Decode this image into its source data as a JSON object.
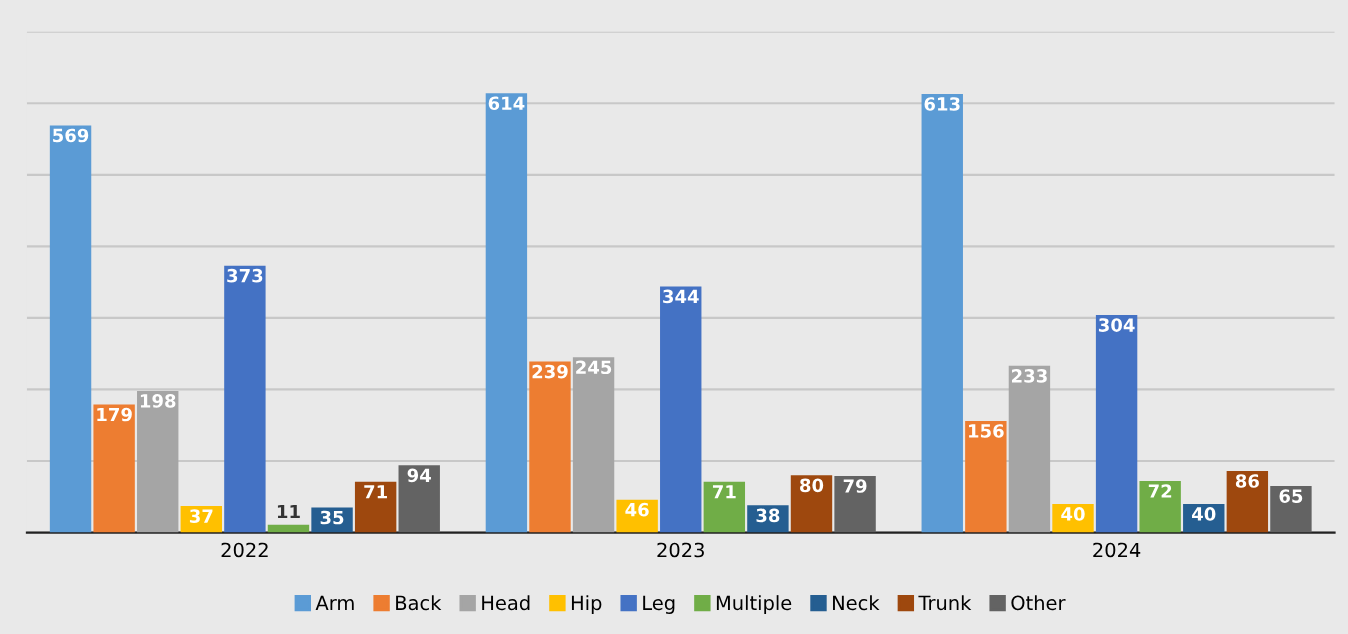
{
  "chart_data": {
    "type": "bar",
    "categories": [
      "2022",
      "2023",
      "2024"
    ],
    "series": [
      {
        "name": "Arm",
        "color": "#5b9bd5",
        "values": [
          569,
          614,
          613
        ]
      },
      {
        "name": "Back",
        "color": "#ed7d31",
        "values": [
          179,
          239,
          156
        ]
      },
      {
        "name": "Head",
        "color": "#a5a5a5",
        "values": [
          198,
          245,
          233
        ]
      },
      {
        "name": "Hip",
        "color": "#ffc000",
        "values": [
          37,
          46,
          40
        ]
      },
      {
        "name": "Leg",
        "color": "#4472c4",
        "values": [
          373,
          344,
          304
        ]
      },
      {
        "name": "Multiple",
        "color": "#70ad47",
        "values": [
          11,
          71,
          72
        ]
      },
      {
        "name": "Neck",
        "color": "#255e91",
        "values": [
          35,
          38,
          40
        ]
      },
      {
        "name": "Trunk",
        "color": "#9e480e",
        "values": [
          71,
          80,
          86
        ]
      },
      {
        "name": "Other",
        "color": "#636363",
        "values": [
          94,
          79,
          65
        ]
      }
    ],
    "ylim": [
      0,
      700
    ],
    "yticks": [
      {
        "value": 0,
        "label": null
      },
      {
        "value": 100,
        "label": null
      },
      {
        "value": 200,
        "label": null
      },
      {
        "value": 300,
        "label": null
      },
      {
        "value": 400,
        "label": null
      },
      {
        "value": 500,
        "label": null
      },
      {
        "value": 600,
        "label": null
      },
      {
        "value": 700,
        "label": null
      }
    ],
    "tick_labels": "x",
    "grid": "y",
    "legend": "bottom",
    "data_labels": true
  }
}
